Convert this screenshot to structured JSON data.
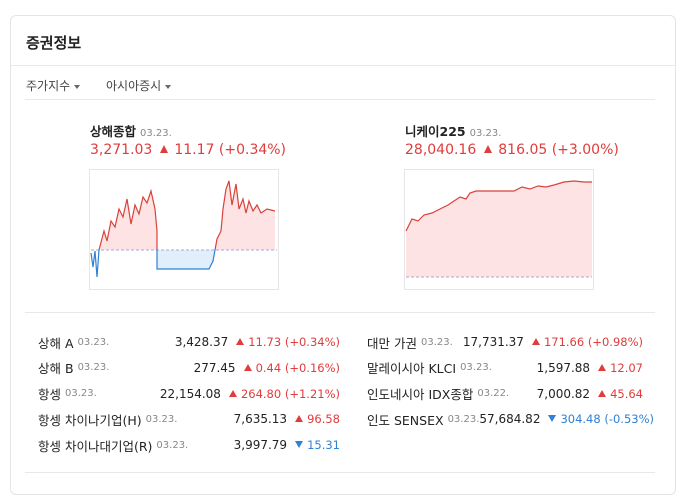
{
  "header": {
    "title": "증권정보"
  },
  "tabs": [
    "주가지수",
    "아시아증시"
  ],
  "featured": [
    {
      "name": "상해종합",
      "date": "03.23.",
      "price": "3,271.03",
      "direction": "up",
      "change": "11.17",
      "percent": "(+0.34%)"
    },
    {
      "name": "니케이225",
      "date": "03.23.",
      "price": "28,040.16",
      "direction": "up",
      "change": "816.05",
      "percent": "(+3.00%)"
    }
  ],
  "table": {
    "left": [
      {
        "name": "상해 A",
        "date": "03.23.",
        "price": "3,428.37",
        "direction": "up",
        "change": "11.73",
        "percent": "(+0.34%)"
      },
      {
        "name": "상해 B",
        "date": "03.23.",
        "price": "277.45",
        "direction": "up",
        "change": "0.44",
        "percent": "(+0.16%)"
      },
      {
        "name": "항셍",
        "date": "03.23.",
        "price": "22,154.08",
        "direction": "up",
        "change": "264.80",
        "percent": "(+1.21%)"
      },
      {
        "name": "항셍 차이나기업(H)",
        "date": "03.23.",
        "price": "7,635.13",
        "direction": "up",
        "change": "96.58"
      },
      {
        "name": "항셍 차이나대기업(R)",
        "date": "03.23.",
        "price": "3,997.79",
        "direction": "down",
        "change": "15.31"
      }
    ],
    "right": [
      {
        "name": "대만 가권",
        "date": "03.23.",
        "price": "17,731.37",
        "direction": "up",
        "change": "171.66",
        "percent": "(+0.98%)"
      },
      {
        "name": "말레이시아 KLCI",
        "date": "03.23.",
        "price": "1,597.88",
        "direction": "up",
        "change": "12.07"
      },
      {
        "name": "인도네시아 IDX종합",
        "date": "03.22.",
        "price": "7,000.82",
        "direction": "up",
        "change": "45.64"
      },
      {
        "name": "인도 SENSEX",
        "date": "03.23.",
        "price": "57,684.82",
        "direction": "down",
        "change": "304.48",
        "percent": "(-0.53%)"
      }
    ]
  }
}
